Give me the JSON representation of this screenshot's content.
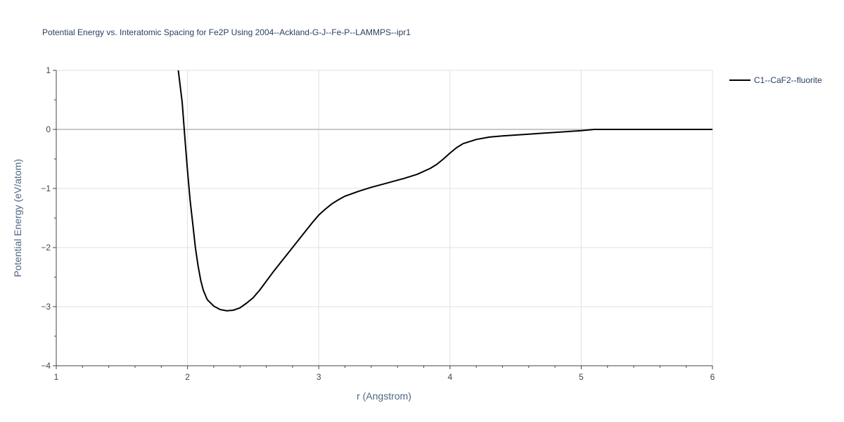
{
  "chart_data": {
    "type": "line",
    "title": "Potential Energy vs. Interatomic Spacing for Fe2P Using 2004--Ackland-G-J--Fe-P--LAMMPS--ipr1",
    "xlabel": "r (Angstrom)",
    "ylabel": "Potential Energy (eV/atom)",
    "xlim": [
      1,
      6
    ],
    "ylim": [
      -4,
      1
    ],
    "xticks": [
      1,
      2,
      3,
      4,
      5,
      6
    ],
    "xtick_labels": [
      "1",
      "2",
      "3",
      "4",
      "5",
      "6"
    ],
    "yticks": [
      -4,
      -3,
      -2,
      -1,
      0,
      1
    ],
    "ytick_labels": [
      "−4",
      "−3",
      "−2",
      "−1",
      "0",
      "1"
    ],
    "grid": true,
    "legend_position": "top-right",
    "series": [
      {
        "name": "C1--CaF2--fluorite",
        "color": "#000000",
        "x": [
          1.93,
          1.96,
          1.98,
          2.0,
          2.02,
          2.04,
          2.06,
          2.08,
          2.1,
          2.12,
          2.15,
          2.2,
          2.25,
          2.3,
          2.35,
          2.4,
          2.45,
          2.5,
          2.55,
          2.6,
          2.65,
          2.7,
          2.8,
          2.9,
          2.95,
          3.0,
          3.05,
          3.1,
          3.15,
          3.2,
          3.3,
          3.4,
          3.5,
          3.6,
          3.65,
          3.75,
          3.85,
          3.9,
          3.95,
          4.0,
          4.05,
          4.1,
          4.2,
          4.3,
          4.4,
          4.6,
          4.8,
          5.0,
          5.1,
          5.3,
          5.5,
          6.0
        ],
        "y": [
          1.0,
          0.45,
          -0.15,
          -0.7,
          -1.2,
          -1.6,
          -2.0,
          -2.3,
          -2.55,
          -2.72,
          -2.88,
          -2.99,
          -3.05,
          -3.07,
          -3.06,
          -3.02,
          -2.94,
          -2.85,
          -2.72,
          -2.57,
          -2.42,
          -2.28,
          -2.0,
          -1.72,
          -1.58,
          -1.45,
          -1.35,
          -1.26,
          -1.19,
          -1.13,
          -1.05,
          -0.98,
          -0.92,
          -0.86,
          -0.83,
          -0.76,
          -0.66,
          -0.59,
          -0.5,
          -0.4,
          -0.31,
          -0.24,
          -0.17,
          -0.13,
          -0.11,
          -0.08,
          -0.05,
          -0.02,
          0.0,
          0.0,
          0.0,
          0.0
        ]
      }
    ]
  }
}
